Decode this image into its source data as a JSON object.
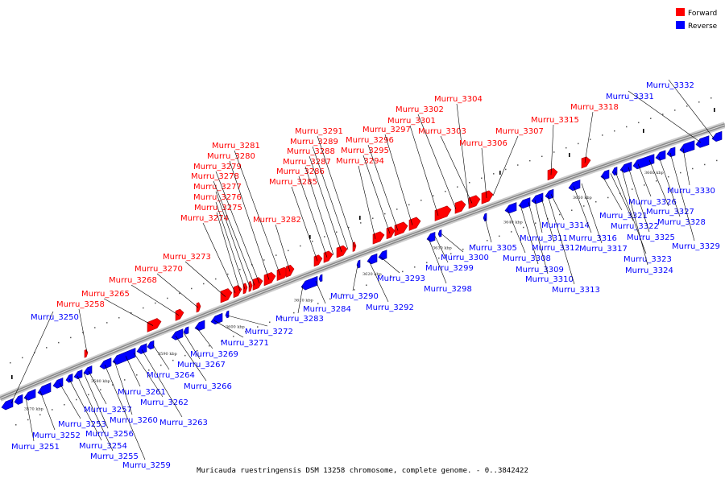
{
  "caption": "Muricauda ruestringensis DSM 13258 chromosome, complete genome. - 0..3842422",
  "legend": [
    {
      "key": "forward",
      "label": "Forward",
      "color": "#ff0000"
    },
    {
      "key": "reverse",
      "label": "Reverse",
      "color": "#0000ff"
    }
  ],
  "colors": {
    "forward": "#ff0000",
    "reverse": "#0000ff",
    "axis": "#888888",
    "leader": "#000000"
  },
  "kbp_marks": [
    "3570 kbp",
    "3580 kbp",
    "3590 kbp",
    "3600 kbp",
    "3610 kbp",
    "3620 kbp",
    "3630 kbp",
    "3640 kbp",
    "3650 kbp",
    "3660 kbp"
  ],
  "genes": {
    "forward": [
      "Murru_3258",
      "Murru_3265",
      "Murru_3268",
      "Murru_3270",
      "Murru_3273",
      "Murru_3274",
      "Murru_3275",
      "Murru_3276",
      "Murru_3277",
      "Murru_3278",
      "Murru_3279",
      "Murru_3280",
      "Murru_3281",
      "Murru_3282",
      "Murru_3285",
      "Murru_3286",
      "Murru_3287",
      "Murru_3288",
      "Murru_3289",
      "Murru_3291",
      "Murru_3294",
      "Murru_3295",
      "Murru_3296",
      "Murru_3297",
      "Murru_3301",
      "Murru_3302",
      "Murru_3303",
      "Murru_3304",
      "Murru_3306",
      "Murru_3307",
      "Murru_3315",
      "Murru_3318"
    ],
    "reverse": [
      "Murru_3250",
      "Murru_3251",
      "Murru_3252",
      "Murru_3253",
      "Murru_3254",
      "Murru_3255",
      "Murru_3256",
      "Murru_3257",
      "Murru_3259",
      "Murru_3260",
      "Murru_3261",
      "Murru_3262",
      "Murru_3263",
      "Murru_3264",
      "Murru_3266",
      "Murru_3267",
      "Murru_3269",
      "Murru_3271",
      "Murru_3272",
      "Murru_3283",
      "Murru_3284",
      "Murru_3290",
      "Murru_3292",
      "Murru_3293",
      "Murru_3298",
      "Murru_3299",
      "Murru_3300",
      "Murru_3305",
      "Murru_3308",
      "Murru_3309",
      "Murru_3310",
      "Murru_3311",
      "Murru_3312",
      "Murru_3313",
      "Murru_3314",
      "Murru_3316",
      "Murru_3317",
      "Murru_3321",
      "Murru_3322",
      "Murru_3323",
      "Murru_3324",
      "Murru_3325",
      "Murru_3326",
      "Murru_3327",
      "Murru_3328",
      "Murru_3329",
      "Murru_3330",
      "Murru_3331",
      "Murru_3332"
    ]
  }
}
